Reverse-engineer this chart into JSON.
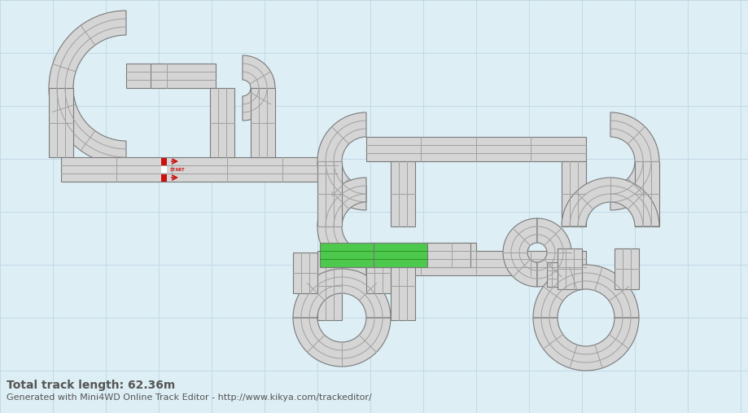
{
  "bg_color": "#ddeef5",
  "grid_color": "#c2dae6",
  "track_fill": "#d5d5d5",
  "track_border": "#7a7a7a",
  "track_line": "#a0a0a0",
  "green_fill": "#4dc94d",
  "green_line": "#2a992a",
  "start_red": "#cc1111",
  "start_white": "#ffffff",
  "text_dark": "#555555",
  "title_text": "Total track length: 62.36m",
  "subtitle_text": "Generated with Mini4WD Online Track Editor - http://www.kikya.com/trackeditor/",
  "title_fontsize": 10,
  "subtitle_fontsize": 8,
  "figsize": [
    9.2,
    5.07
  ],
  "dpi": 100
}
